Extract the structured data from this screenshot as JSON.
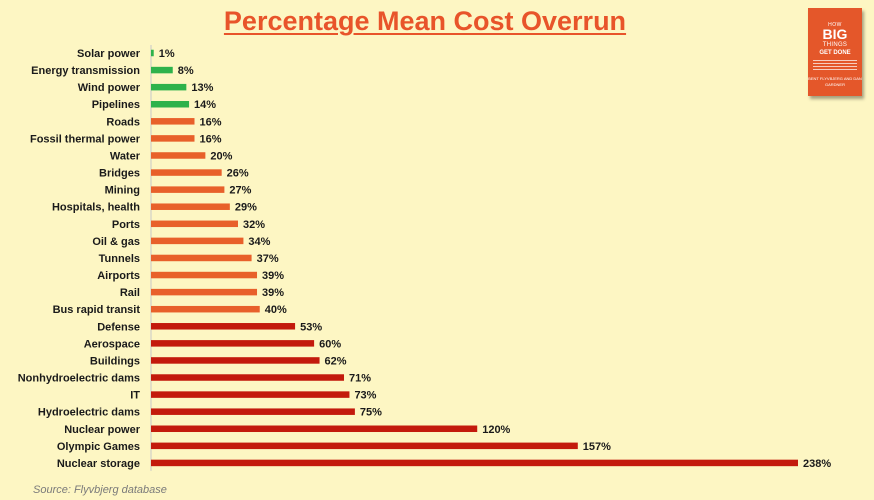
{
  "title": "Percentage Mean Cost Overrun",
  "source": "Source: Flyvbjerg database",
  "colors": {
    "background": "#fdf6c3",
    "title": "#e8542a",
    "green": "#2db24b",
    "orange": "#e8602a",
    "red": "#c31a0c"
  },
  "book_cover": {
    "line1": "HOW",
    "line2": "BIG",
    "line3": "THINGS",
    "line4": "GET DONE",
    "authors": "BENT FLYVBJERG AND DAN GARDNER"
  },
  "chart_data": {
    "type": "bar",
    "orientation": "horizontal",
    "title": "Percentage Mean Cost Overrun",
    "unit": "%",
    "grid": false,
    "categories": [
      "Solar power",
      "Energy transmission",
      "Wind power",
      "Pipelines",
      "Roads",
      "Fossil thermal power",
      "Water",
      "Bridges",
      "Mining",
      "Hospitals, health",
      "Ports",
      "Oil & gas",
      "Tunnels",
      "Airports",
      "Rail",
      "Bus rapid transit",
      "Defense",
      "Aerospace",
      "Buildings",
      "Nonhydroelectric dams",
      "IT",
      "Hydroelectric dams",
      "Nuclear power",
      "Olympic Games",
      "Nuclear storage"
    ],
    "values": [
      1,
      8,
      13,
      14,
      16,
      16,
      20,
      26,
      27,
      29,
      32,
      34,
      37,
      39,
      39,
      40,
      53,
      60,
      62,
      71,
      73,
      75,
      120,
      157,
      238
    ],
    "labels": [
      "1%",
      "8%",
      "13%",
      "14%",
      "16%",
      "16%",
      "20%",
      "26%",
      "27%",
      "29%",
      "32%",
      "34%",
      "37%",
      "39%",
      "39%",
      "40%",
      "53%",
      "60%",
      "62%",
      "71%",
      "73%",
      "75%",
      "120%",
      "157%",
      "238%"
    ],
    "bar_colors": [
      "green",
      "green",
      "green",
      "green",
      "orange",
      "orange",
      "orange",
      "orange",
      "orange",
      "orange",
      "orange",
      "orange",
      "orange",
      "orange",
      "orange",
      "orange",
      "red",
      "red",
      "red",
      "red",
      "red",
      "red",
      "red",
      "red",
      "red"
    ]
  }
}
